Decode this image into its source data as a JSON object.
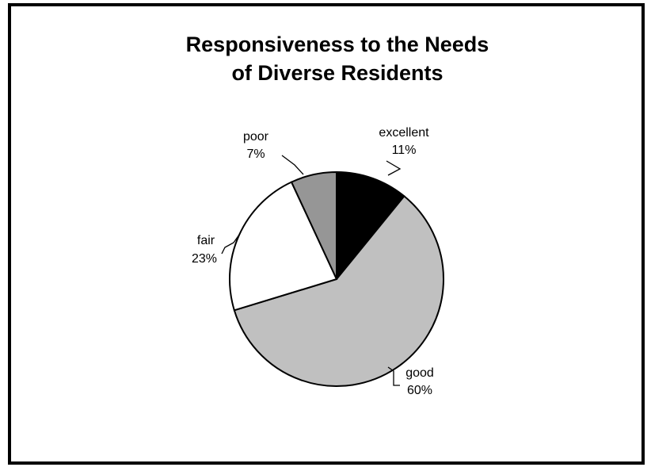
{
  "chart_data": {
    "type": "pie",
    "title_lines": [
      "Responsiveness to the Needs",
      "of Diverse Residents"
    ],
    "slices": [
      {
        "label": "excellent",
        "value": 11,
        "value_label": "11%",
        "color": "#000000"
      },
      {
        "label": "good",
        "value": 60,
        "value_label": "60%",
        "color": "#c0c0c0"
      },
      {
        "label": "fair",
        "value": 23,
        "value_label": "23%",
        "color": "#ffffff"
      },
      {
        "label": "poor",
        "value": 7,
        "value_label": "7%",
        "color": "#969696"
      }
    ],
    "legend": "none"
  }
}
